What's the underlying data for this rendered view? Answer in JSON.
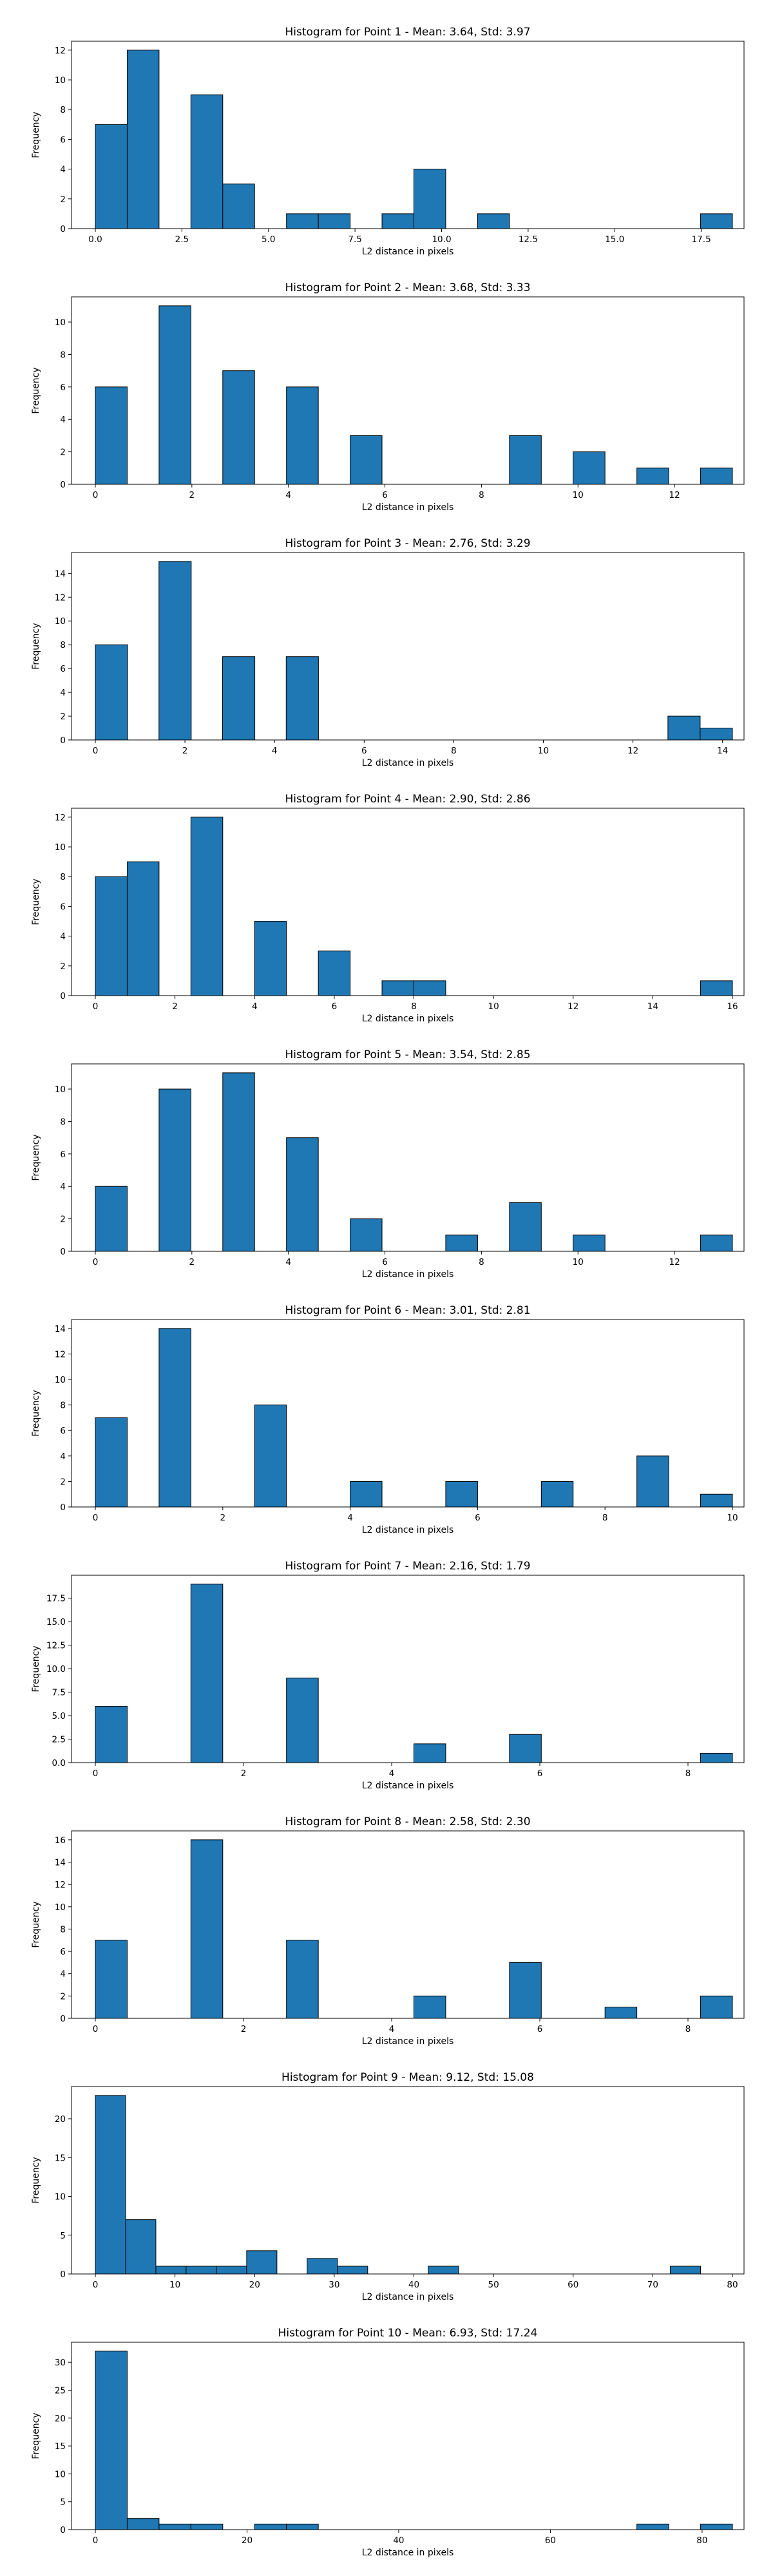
{
  "figure": {
    "bar_color": "#1f77b4",
    "edge_color": "#000000",
    "background": "#ffffff"
  },
  "chart_data": [
    {
      "type": "bar",
      "title": "Histogram for Point 1 - Mean: 3.64, Std: 3.97",
      "xlabel": "L2 distance in pixels",
      "ylabel": "Frequency",
      "xlim": [
        -0.92,
        19.3
      ],
      "ylim": [
        0,
        12.6
      ],
      "xticks": [
        0.0,
        2.5,
        5.0,
        7.5,
        10.0,
        12.5,
        15.0,
        17.5
      ],
      "xtick_labels": [
        "0.0",
        "2.5",
        "5.0",
        "7.5",
        "10.0",
        "12.5",
        "15.0",
        "17.5"
      ],
      "yticks": [
        0,
        2,
        4,
        6,
        8,
        10,
        12
      ],
      "ytick_labels": [
        "0",
        "2",
        "4",
        "6",
        "8",
        "10",
        "12"
      ],
      "bin_width": 0.92,
      "bins": [
        {
          "x": 0.0,
          "count": 7
        },
        {
          "x": 0.92,
          "count": 12
        },
        {
          "x": 2.76,
          "count": 9
        },
        {
          "x": 3.68,
          "count": 3
        },
        {
          "x": 5.52,
          "count": 1
        },
        {
          "x": 6.44,
          "count": 1
        },
        {
          "x": 8.28,
          "count": 1
        },
        {
          "x": 9.2,
          "count": 4
        },
        {
          "x": 11.04,
          "count": 1
        },
        {
          "x": 17.48,
          "count": 1
        }
      ]
    },
    {
      "type": "bar",
      "title": "Histogram for Point 2 - Mean: 3.68, Std: 3.33",
      "xlabel": "L2 distance in pixels",
      "ylabel": "Frequency",
      "xlim": [
        -0.66,
        13.9
      ],
      "ylim": [
        0,
        11.55
      ],
      "xticks": [
        0,
        2,
        4,
        6,
        8,
        10,
        12
      ],
      "xtick_labels": [
        "0",
        "2",
        "4",
        "6",
        "8",
        "10",
        "12"
      ],
      "yticks": [
        0,
        2,
        4,
        6,
        8,
        10
      ],
      "ytick_labels": [
        "0",
        "2",
        "4",
        "6",
        "8",
        "10"
      ],
      "bin_width": 0.66,
      "bins": [
        {
          "x": 0.0,
          "count": 6
        },
        {
          "x": 1.32,
          "count": 11
        },
        {
          "x": 2.64,
          "count": 7
        },
        {
          "x": 3.96,
          "count": 6
        },
        {
          "x": 5.28,
          "count": 3
        },
        {
          "x": 8.58,
          "count": 3
        },
        {
          "x": 9.9,
          "count": 2
        },
        {
          "x": 11.22,
          "count": 1
        },
        {
          "x": 12.54,
          "count": 1
        }
      ]
    },
    {
      "type": "bar",
      "title": "Histogram for Point 3 - Mean: 2.76, Std: 3.29",
      "xlabel": "L2 distance in pixels",
      "ylabel": "Frequency",
      "xlim": [
        -0.72,
        14.9
      ],
      "ylim": [
        0,
        15.75
      ],
      "xticks": [
        0,
        2,
        4,
        6,
        8,
        10,
        12,
        14
      ],
      "xtick_labels": [
        "0",
        "2",
        "4",
        "6",
        "8",
        "10",
        "12",
        "14"
      ],
      "yticks": [
        0,
        2,
        4,
        6,
        8,
        10,
        12,
        14
      ],
      "ytick_labels": [
        "0",
        "2",
        "4",
        "6",
        "8",
        "10",
        "12",
        "14"
      ],
      "bin_width": 0.72,
      "bins": [
        {
          "x": 0.0,
          "count": 8
        },
        {
          "x": 1.42,
          "count": 15
        },
        {
          "x": 2.84,
          "count": 7
        },
        {
          "x": 4.26,
          "count": 7
        },
        {
          "x": 12.78,
          "count": 2
        },
        {
          "x": 13.5,
          "count": 1
        }
      ]
    },
    {
      "type": "bar",
      "title": "Histogram for Point 4 - Mean: 2.90, Std: 2.86",
      "xlabel": "L2 distance in pixels",
      "ylabel": "Frequency",
      "xlim": [
        -0.8,
        16.7
      ],
      "ylim": [
        0,
        12.6
      ],
      "xticks": [
        0,
        2,
        4,
        6,
        8,
        10,
        12,
        14,
        16
      ],
      "xtick_labels": [
        "0",
        "2",
        "4",
        "6",
        "8",
        "10",
        "12",
        "14",
        "16"
      ],
      "yticks": [
        0,
        2,
        4,
        6,
        8,
        10,
        12
      ],
      "ytick_labels": [
        "0",
        "2",
        "4",
        "6",
        "8",
        "10",
        "12"
      ],
      "bin_width": 0.8,
      "bins": [
        {
          "x": 0.0,
          "count": 8
        },
        {
          "x": 0.8,
          "count": 9
        },
        {
          "x": 2.4,
          "count": 12
        },
        {
          "x": 4.0,
          "count": 5
        },
        {
          "x": 5.6,
          "count": 3
        },
        {
          "x": 7.2,
          "count": 1
        },
        {
          "x": 8.0,
          "count": 1
        },
        {
          "x": 15.2,
          "count": 1
        }
      ]
    },
    {
      "type": "bar",
      "title": "Histogram for Point 5 - Mean: 3.54, Std: 2.85",
      "xlabel": "L2 distance in pixels",
      "ylabel": "Frequency",
      "xlim": [
        -0.66,
        13.9
      ],
      "ylim": [
        0,
        11.55
      ],
      "xticks": [
        0,
        2,
        4,
        6,
        8,
        10,
        12
      ],
      "xtick_labels": [
        "0",
        "2",
        "4",
        "6",
        "8",
        "10",
        "12"
      ],
      "yticks": [
        0,
        2,
        4,
        6,
        8,
        10
      ],
      "ytick_labels": [
        "0",
        "2",
        "4",
        "6",
        "8",
        "10"
      ],
      "bin_width": 0.66,
      "bins": [
        {
          "x": 0.0,
          "count": 4
        },
        {
          "x": 1.32,
          "count": 10
        },
        {
          "x": 2.64,
          "count": 11
        },
        {
          "x": 3.96,
          "count": 7
        },
        {
          "x": 5.28,
          "count": 2
        },
        {
          "x": 7.26,
          "count": 1
        },
        {
          "x": 8.58,
          "count": 3
        },
        {
          "x": 9.9,
          "count": 1
        },
        {
          "x": 12.54,
          "count": 1
        }
      ]
    },
    {
      "type": "bar",
      "title": "Histogram for Point 6 - Mean: 3.01, Std: 2.81",
      "xlabel": "L2 distance in pixels",
      "ylabel": "Frequency",
      "xlim": [
        -0.5,
        10.5
      ],
      "ylim": [
        0,
        14.7
      ],
      "xticks": [
        0,
        2,
        4,
        6,
        8,
        10
      ],
      "xtick_labels": [
        "0",
        "2",
        "4",
        "6",
        "8",
        "10"
      ],
      "yticks": [
        0,
        2,
        4,
        6,
        8,
        10,
        12,
        14
      ],
      "ytick_labels": [
        "0",
        "2",
        "4",
        "6",
        "8",
        "10",
        "12",
        "14"
      ],
      "bin_width": 0.5,
      "bins": [
        {
          "x": 0.0,
          "count": 7
        },
        {
          "x": 1.0,
          "count": 14
        },
        {
          "x": 2.5,
          "count": 8
        },
        {
          "x": 4.0,
          "count": 2
        },
        {
          "x": 5.5,
          "count": 2
        },
        {
          "x": 7.0,
          "count": 2
        },
        {
          "x": 8.5,
          "count": 4
        },
        {
          "x": 9.5,
          "count": 1
        }
      ]
    },
    {
      "type": "bar",
      "title": "Histogram for Point 7 - Mean: 2.16, Std: 1.79",
      "xlabel": "L2 distance in pixels",
      "ylabel": "Frequency",
      "xlim": [
        -0.43,
        9.05
      ],
      "ylim": [
        0,
        19.95
      ],
      "xticks": [
        0,
        2,
        4,
        6,
        8
      ],
      "xtick_labels": [
        "0",
        "2",
        "4",
        "6",
        "8"
      ],
      "yticks": [
        0.0,
        2.5,
        5.0,
        7.5,
        10.0,
        12.5,
        15.0,
        17.5
      ],
      "ytick_labels": [
        "0.0",
        "2.5",
        "5.0",
        "7.5",
        "10.0",
        "12.5",
        "15.0",
        "17.5"
      ],
      "bin_width": 0.43,
      "bins": [
        {
          "x": 0.0,
          "count": 6
        },
        {
          "x": 1.29,
          "count": 19
        },
        {
          "x": 2.58,
          "count": 9
        },
        {
          "x": 4.3,
          "count": 2
        },
        {
          "x": 5.59,
          "count": 3
        },
        {
          "x": 8.17,
          "count": 1
        }
      ]
    },
    {
      "type": "bar",
      "title": "Histogram for Point 8 - Mean: 2.58, Std: 2.30",
      "xlabel": "L2 distance in pixels",
      "ylabel": "Frequency",
      "xlim": [
        -0.43,
        9.05
      ],
      "ylim": [
        0,
        16.8
      ],
      "xticks": [
        0,
        2,
        4,
        6,
        8
      ],
      "xtick_labels": [
        "0",
        "2",
        "4",
        "6",
        "8"
      ],
      "yticks": [
        0,
        2,
        4,
        6,
        8,
        10,
        12,
        14,
        16
      ],
      "ytick_labels": [
        "0",
        "2",
        "4",
        "6",
        "8",
        "10",
        "12",
        "14",
        "16"
      ],
      "bin_width": 0.43,
      "bins": [
        {
          "x": 0.0,
          "count": 7
        },
        {
          "x": 1.29,
          "count": 16
        },
        {
          "x": 2.58,
          "count": 7
        },
        {
          "x": 4.3,
          "count": 2
        },
        {
          "x": 5.59,
          "count": 5
        },
        {
          "x": 6.88,
          "count": 1
        },
        {
          "x": 8.17,
          "count": 2
        }
      ]
    },
    {
      "type": "bar",
      "title": "Histogram for Point 9 - Mean: 9.12, Std: 15.08",
      "xlabel": "L2 distance in pixels",
      "ylabel": "Frequency",
      "xlim": [
        -3.8,
        80.0
      ],
      "ylim": [
        0,
        24.15
      ],
      "xticks": [
        0,
        10,
        20,
        30,
        40,
        50,
        60,
        70,
        80
      ],
      "xtick_labels": [
        "0",
        "10",
        "20",
        "30",
        "40",
        "50",
        "60",
        "70",
        "80"
      ],
      "yticks": [
        0,
        5,
        10,
        15,
        20
      ],
      "ytick_labels": [
        "0",
        "5",
        "10",
        "15",
        "20"
      ],
      "bin_width": 3.8,
      "bins": [
        {
          "x": 0.0,
          "count": 23
        },
        {
          "x": 3.8,
          "count": 7
        },
        {
          "x": 7.6,
          "count": 1
        },
        {
          "x": 11.4,
          "count": 1
        },
        {
          "x": 15.2,
          "count": 1
        },
        {
          "x": 19.0,
          "count": 3
        },
        {
          "x": 26.6,
          "count": 2
        },
        {
          "x": 30.4,
          "count": 1
        },
        {
          "x": 41.8,
          "count": 1
        },
        {
          "x": 72.2,
          "count": 1
        }
      ]
    },
    {
      "type": "bar",
      "title": "Histogram for Point 10 - Mean: 6.93, Std: 17.24",
      "xlabel": "L2 distance in pixels",
      "ylabel": "Frequency",
      "xlim": [
        -4.2,
        88.0
      ],
      "ylim": [
        0,
        33.6
      ],
      "xticks": [
        0,
        20,
        40,
        60,
        80
      ],
      "xtick_labels": [
        "0",
        "20",
        "40",
        "60",
        "80"
      ],
      "yticks": [
        0,
        5,
        10,
        15,
        20,
        25,
        30
      ],
      "ytick_labels": [
        "0",
        "5",
        "10",
        "15",
        "20",
        "25",
        "30"
      ],
      "bin_width": 4.2,
      "bins": [
        {
          "x": 0.0,
          "count": 32
        },
        {
          "x": 4.2,
          "count": 2
        },
        {
          "x": 8.4,
          "count": 1
        },
        {
          "x": 12.6,
          "count": 1
        },
        {
          "x": 21.0,
          "count": 1
        },
        {
          "x": 25.2,
          "count": 1
        },
        {
          "x": 71.4,
          "count": 1
        },
        {
          "x": 79.8,
          "count": 1
        }
      ]
    }
  ]
}
